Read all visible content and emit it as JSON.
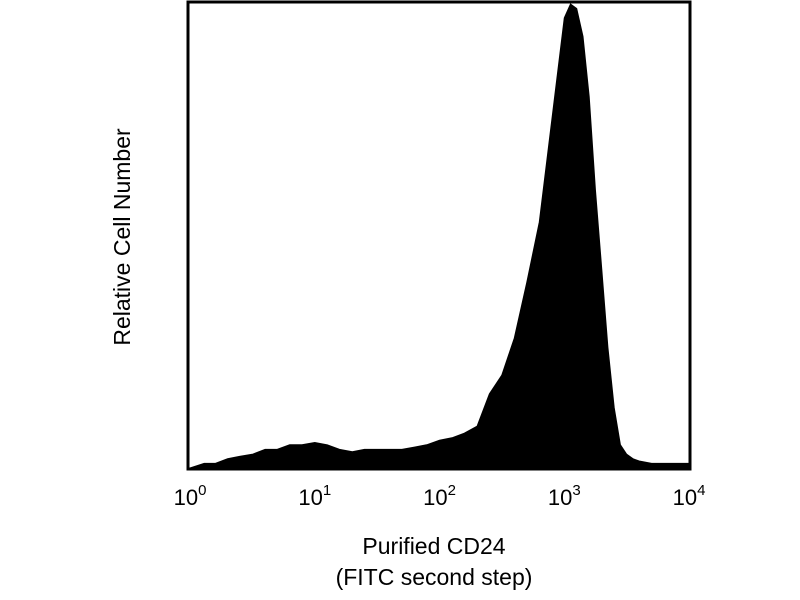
{
  "chart_data": {
    "type": "area",
    "style": "filled histogram",
    "x_scale": "log",
    "xlim": [
      1,
      10000
    ],
    "ylim": [
      0,
      1
    ],
    "grid": false,
    "legend": "none",
    "title": "",
    "xlabel_lines": [
      "Purified CD24",
      "(FITC second step)"
    ],
    "ylabel": "Relative Cell Number",
    "x_ticks": [
      {
        "value": 1,
        "base": "10",
        "exp": "0"
      },
      {
        "value": 10,
        "base": "10",
        "exp": "1"
      },
      {
        "value": 100,
        "base": "10",
        "exp": "2"
      },
      {
        "value": 1000,
        "base": "10",
        "exp": "3"
      },
      {
        "value": 10000,
        "base": "10",
        "exp": "4"
      }
    ],
    "fill_color": "#000000",
    "series": [
      {
        "x": [
          1,
          1.3,
          1.6,
          2.0,
          2.5,
          3.2,
          4.0,
          5.0,
          6.3,
          7.9,
          10,
          12.6,
          15.8,
          20,
          25,
          31.6,
          40,
          50,
          63,
          79,
          100,
          126,
          158,
          200,
          251,
          316,
          398,
          501,
          631,
          794,
          1000,
          1122,
          1259,
          1413,
          1585,
          1778,
          1995,
          2239,
          2512,
          2818,
          3162,
          3548,
          3981,
          5012,
          6310,
          7943,
          10000
        ],
        "y": [
          0,
          0.01,
          0.01,
          0.02,
          0.025,
          0.03,
          0.04,
          0.04,
          0.05,
          0.05,
          0.055,
          0.05,
          0.04,
          0.035,
          0.04,
          0.04,
          0.04,
          0.04,
          0.045,
          0.05,
          0.06,
          0.065,
          0.075,
          0.09,
          0.16,
          0.2,
          0.28,
          0.4,
          0.53,
          0.75,
          0.97,
          1.0,
          0.99,
          0.93,
          0.8,
          0.6,
          0.43,
          0.26,
          0.13,
          0.05,
          0.03,
          0.02,
          0.015,
          0.01,
          0.01,
          0.01,
          0.01
        ]
      }
    ]
  }
}
